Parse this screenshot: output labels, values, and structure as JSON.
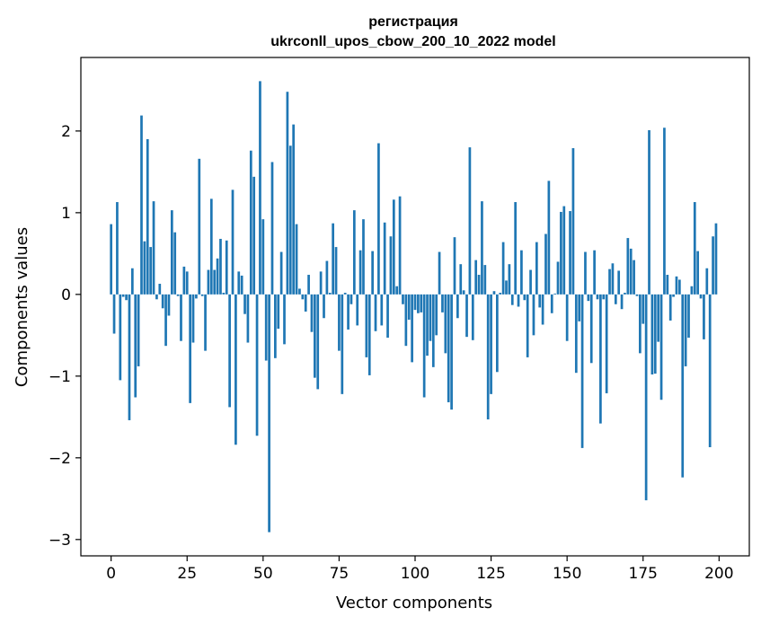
{
  "chart_data": {
    "type": "bar",
    "title_line1": "регистрация",
    "title_line2": "ukrconll_upos_cbow_200_10_2022 model",
    "xlabel": "Vector components",
    "ylabel": "Components values",
    "xlim": [
      -9.95,
      209.95
    ],
    "ylim": [
      -3.2,
      2.9
    ],
    "xticks": [
      0,
      25,
      50,
      75,
      100,
      125,
      150,
      175,
      200
    ],
    "xtick_labels": [
      "0",
      "25",
      "50",
      "75",
      "100",
      "125",
      "150",
      "175",
      "200"
    ],
    "yticks": [
      -3,
      -2,
      -1,
      0,
      1,
      2
    ],
    "ytick_labels": [
      "−3",
      "−2",
      "−1",
      "0",
      "1",
      "2"
    ],
    "bar_color": "#1f77b4",
    "values": [
      0.86,
      -0.48,
      1.13,
      -1.05,
      -0.03,
      -0.07,
      -1.54,
      0.32,
      -1.26,
      -0.88,
      2.19,
      0.65,
      1.9,
      0.58,
      1.14,
      -0.06,
      0.13,
      -0.17,
      -0.63,
      -0.26,
      1.03,
      0.76,
      -0.02,
      -0.57,
      0.34,
      0.28,
      -1.33,
      -0.59,
      -0.05,
      1.66,
      -0.02,
      -0.69,
      0.3,
      1.17,
      0.3,
      0.44,
      0.68,
      0.02,
      0.66,
      -1.38,
      1.28,
      -1.84,
      0.28,
      0.23,
      -0.24,
      -0.59,
      1.76,
      1.44,
      -1.73,
      2.61,
      0.92,
      -0.81,
      -2.91,
      1.62,
      -0.78,
      -0.42,
      0.52,
      -0.61,
      2.48,
      1.82,
      2.08,
      0.86,
      0.07,
      -0.06,
      -0.21,
      0.24,
      -0.46,
      -1.02,
      -1.16,
      0.28,
      -0.29,
      0.41,
      0.02,
      0.87,
      0.58,
      -0.69,
      -1.22,
      0.02,
      -0.43,
      -0.12,
      1.03,
      -0.38,
      0.54,
      0.92,
      -0.77,
      -0.99,
      0.53,
      -0.45,
      1.85,
      -0.38,
      0.88,
      -0.53,
      0.71,
      1.16,
      0.1,
      1.2,
      -0.12,
      -0.63,
      -0.31,
      -0.83,
      -0.19,
      -0.23,
      -0.22,
      -1.26,
      -0.75,
      -0.57,
      -0.89,
      -0.5,
      0.52,
      -0.22,
      -0.72,
      -1.32,
      -1.41,
      0.7,
      -0.29,
      0.37,
      0.05,
      -0.52,
      1.8,
      -0.56,
      0.42,
      0.24,
      1.14,
      0.36,
      -1.53,
      -1.22,
      0.04,
      -0.95,
      0.02,
      0.64,
      0.17,
      0.37,
      -0.13,
      1.13,
      -0.15,
      0.54,
      -0.07,
      -0.77,
      0.3,
      -0.5,
      0.64,
      -0.16,
      -0.37,
      0.74,
      1.39,
      -0.23,
      0.01,
      0.4,
      1.01,
      1.08,
      -0.57,
      1.02,
      1.79,
      -0.96,
      -0.33,
      -1.88,
      0.52,
      -0.08,
      -0.84,
      0.54,
      -0.06,
      -1.58,
      -0.06,
      -1.21,
      0.31,
      0.38,
      -0.12,
      0.29,
      -0.18,
      0.02,
      0.69,
      0.56,
      0.42,
      -0.02,
      -0.72,
      -0.36,
      -2.52,
      2.01,
      -0.98,
      -0.97,
      -0.58,
      -1.29,
      2.04,
      0.24,
      -0.32,
      -0.03,
      0.22,
      0.18,
      -2.24,
      -0.88,
      -0.53,
      0.1,
      1.13,
      0.53,
      -0.05,
      -0.55,
      0.32,
      -1.87,
      0.71,
      0.87
    ]
  }
}
